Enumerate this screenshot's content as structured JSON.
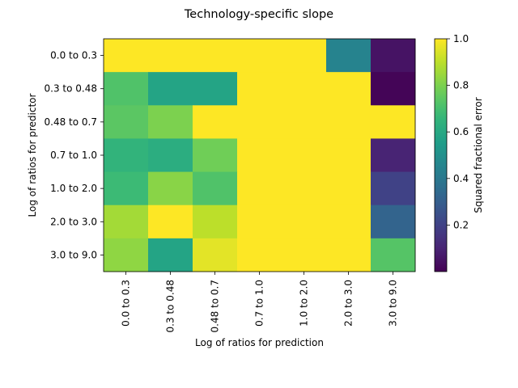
{
  "chart_data": {
    "type": "heatmap",
    "title": "Technology-specific slope",
    "xlabel": "Log of ratios for prediction",
    "ylabel": "Log of ratios for predictor",
    "x_categories": [
      "0.0 to 0.3",
      "0.3 to 0.48",
      "0.48 to 0.7",
      "0.7 to 1.0",
      "1.0 to 2.0",
      "2.0 to 3.0",
      "3.0 to 9.0"
    ],
    "y_categories": [
      "0.0 to 0.3",
      "0.3 to 0.48",
      "0.48 to 0.7",
      "0.7 to 1.0",
      "1.0 to 2.0",
      "2.0 to 3.0",
      "3.0 to 9.0"
    ],
    "values": [
      [
        1.0,
        1.0,
        1.0,
        1.0,
        1.0,
        0.45,
        0.05
      ],
      [
        0.72,
        0.58,
        0.58,
        1.0,
        1.0,
        1.0,
        0.01
      ],
      [
        0.74,
        0.8,
        1.0,
        1.0,
        1.0,
        1.0,
        1.0
      ],
      [
        0.65,
        0.62,
        0.78,
        1.0,
        1.0,
        1.0,
        0.1
      ],
      [
        0.68,
        0.82,
        0.72,
        1.0,
        1.0,
        1.0,
        0.2
      ],
      [
        0.86,
        1.0,
        0.9,
        1.0,
        1.0,
        1.0,
        0.32
      ],
      [
        0.83,
        0.58,
        0.96,
        1.0,
        1.0,
        1.0,
        0.73
      ]
    ],
    "colorbar": {
      "label": "Squared fractional error",
      "min": 0.0,
      "max": 1.0,
      "ticks": [
        0.2,
        0.4,
        0.6,
        0.8,
        1.0
      ],
      "tick_labels": [
        "0.2",
        "0.4",
        "0.6",
        "0.8",
        "1.0"
      ],
      "colormap": "viridis"
    },
    "grid": false
  }
}
